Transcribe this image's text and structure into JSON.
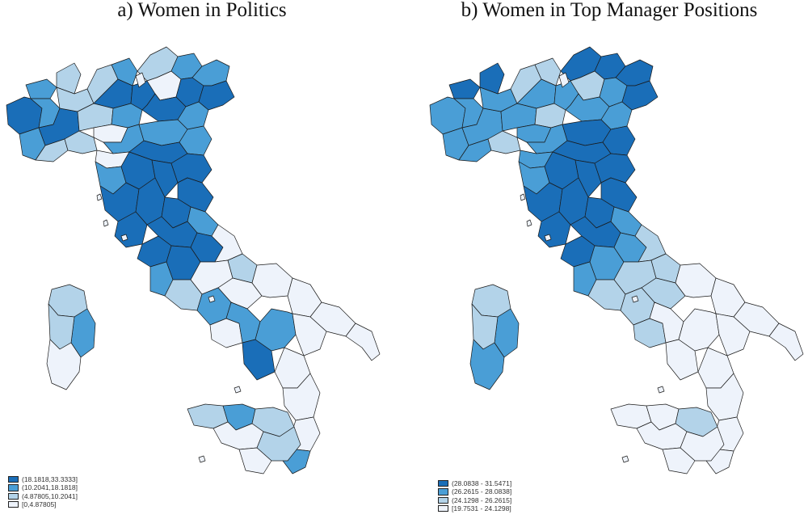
{
  "colors": {
    "class1": "#1a6eb8",
    "class2": "#4a9ed6",
    "class3": "#b3d3e9",
    "class4": "#eef3fb",
    "border": "#1a1a1a"
  },
  "panels": [
    {
      "id": "a",
      "title": "a)  Women in Politics",
      "legend": [
        {
          "label": "(18.1818,33.3333]",
          "color": "#1a6eb8"
        },
        {
          "label": "(10.2041,18.1818]",
          "color": "#4a9ed6"
        },
        {
          "label": "(4.87805,10.2041]",
          "color": "#b3d3e9"
        },
        {
          "label": "[0,4.87805]",
          "color": "#eef3fb"
        }
      ]
    },
    {
      "id": "b",
      "title": "b)  Women in Top Manager Positions",
      "legend": [
        {
          "label": "(28.0838 - 31.5471]",
          "color": "#1a6eb8"
        },
        {
          "label": "(26.2615 - 28.0838]",
          "color": "#4a9ed6"
        },
        {
          "label": "(24.1298 - 26.2615]",
          "color": "#b3d3e9"
        },
        {
          "label": "[19.7531 - 24.1298]",
          "color": "#eef3fb"
        }
      ]
    }
  ]
}
